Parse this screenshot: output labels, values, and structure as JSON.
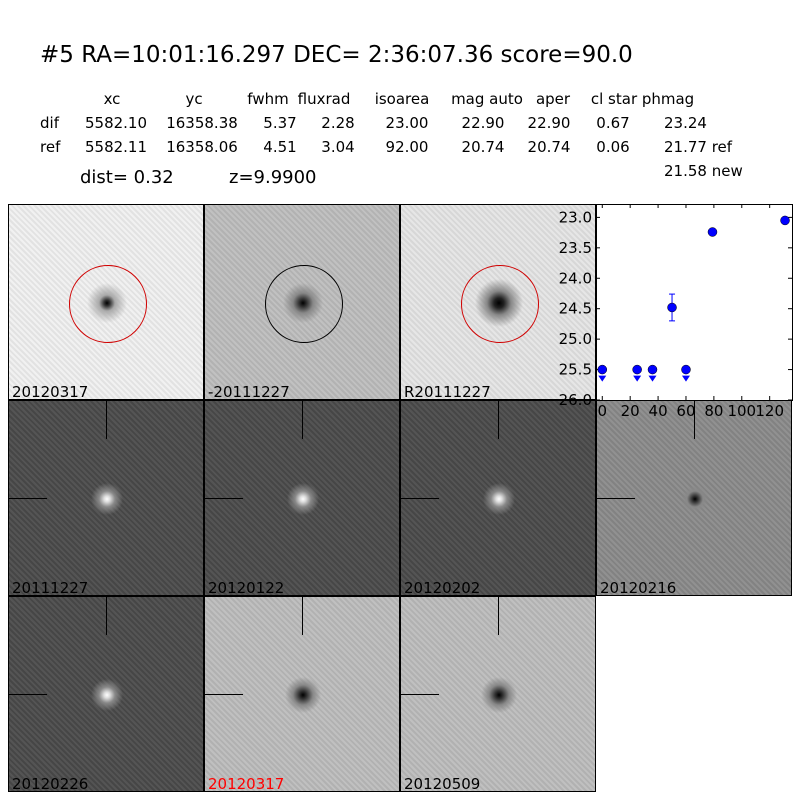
{
  "header": {
    "title": "#5   RA=10:01:16.297 DEC= 2:36:07.36      score=90.0"
  },
  "table": {
    "columns": [
      "xc",
      "yc",
      "fwhm",
      "fluxrad",
      "isoarea",
      "mag auto",
      "aper",
      "cl star",
      "phmag"
    ],
    "rows": [
      {
        "label": "dif",
        "values": [
          "5582.10",
          "16358.38",
          "5.37",
          "2.28",
          "23.00",
          "22.90",
          "22.90",
          "0.67",
          "23.24"
        ]
      },
      {
        "label": "ref",
        "values": [
          "5582.11",
          "16358.06",
          "4.51",
          "3.04",
          "92.00",
          "20.74",
          "20.74",
          "0.06",
          "21.77 ref"
        ]
      }
    ],
    "extra": "21.58 new",
    "dist": "dist=  0.32",
    "z": "z=9.9900"
  },
  "panels": [
    {
      "label": "20120317",
      "style": "new"
    },
    {
      "label": "-20111227",
      "style": "diff"
    },
    {
      "label": "R20111227",
      "style": "ref"
    },
    {
      "label": "20111227",
      "style": "dark"
    },
    {
      "label": "20120122",
      "style": "dark"
    },
    {
      "label": "20120202",
      "style": "dark"
    },
    {
      "label": "20120216",
      "style": "mid"
    },
    {
      "label": "20120226",
      "style": "dark"
    },
    {
      "label": "20120317",
      "style": "light",
      "label_color": "#ff0000"
    },
    {
      "label": "20120509",
      "style": "light"
    }
  ],
  "chart_data": {
    "type": "scatter",
    "xlim": [
      -4.5,
      136
    ],
    "ylim": [
      26.0,
      22.78
    ],
    "y_inverted": true,
    "xticks": [
      "0",
      "20",
      "40",
      "60",
      "80",
      "100",
      "120"
    ],
    "yticks": [
      "23.0",
      "23.5",
      "24.0",
      "24.5",
      "25.0",
      "25.5",
      "26.0"
    ],
    "color": "#0000ff",
    "points": [
      {
        "x": 0,
        "y": 25.5,
        "upper_limit": true
      },
      {
        "x": 25,
        "y": 25.5,
        "upper_limit": true
      },
      {
        "x": 36,
        "y": 25.5,
        "upper_limit": true
      },
      {
        "x": 50,
        "y": 24.48,
        "err": 0.22
      },
      {
        "x": 60,
        "y": 25.5,
        "upper_limit": true
      },
      {
        "x": 79,
        "y": 23.24,
        "err": 0.03
      },
      {
        "x": 131,
        "y": 23.05,
        "err": 0.03
      }
    ]
  }
}
